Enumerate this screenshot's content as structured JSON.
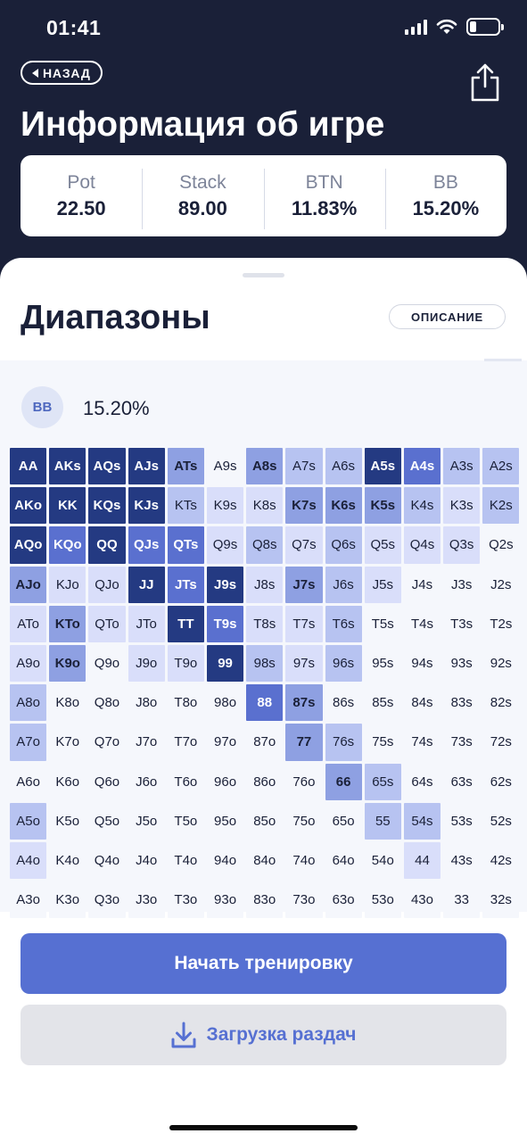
{
  "status_bar": {
    "time": "01:41",
    "battery_level": 0.22
  },
  "header": {
    "back_label": "НАЗАД",
    "title": "Информация об игре",
    "stats": [
      {
        "label": "Pot",
        "value": "22.50"
      },
      {
        "label": "Stack",
        "value": "89.00"
      },
      {
        "label": "BTN",
        "value": "11.83%"
      },
      {
        "label": "BB",
        "value": "15.20%"
      }
    ]
  },
  "ranges": {
    "title": "Диапазоны",
    "description_button": "ОПИСАНИЕ",
    "position": "BB",
    "percent": "15.20%",
    "colors": {
      "level_0": "#f5f7fc",
      "level_1": "#d9defa",
      "level_2": "#b7c3f1",
      "level_3": "#8ea0e2",
      "level_4": "#5a70cf",
      "level_5": "#243a82"
    },
    "grid": [
      [
        [
          "AA",
          5
        ],
        [
          "AKs",
          5
        ],
        [
          "AQs",
          5
        ],
        [
          "AJs",
          5
        ],
        [
          "ATs",
          3
        ],
        [
          "A9s",
          0
        ],
        [
          "A8s",
          3
        ],
        [
          "A7s",
          2
        ],
        [
          "A6s",
          2
        ],
        [
          "A5s",
          5
        ],
        [
          "A4s",
          4
        ],
        [
          "A3s",
          2
        ],
        [
          "A2s",
          2
        ]
      ],
      [
        [
          "AKo",
          5
        ],
        [
          "KK",
          5
        ],
        [
          "KQs",
          5
        ],
        [
          "KJs",
          5
        ],
        [
          "KTs",
          2
        ],
        [
          "K9s",
          1
        ],
        [
          "K8s",
          1
        ],
        [
          "K7s",
          3
        ],
        [
          "K6s",
          3
        ],
        [
          "K5s",
          3
        ],
        [
          "K4s",
          2
        ],
        [
          "K3s",
          1
        ],
        [
          "K2s",
          2
        ]
      ],
      [
        [
          "AQo",
          5
        ],
        [
          "KQo",
          4
        ],
        [
          "QQ",
          5
        ],
        [
          "QJs",
          4
        ],
        [
          "QTs",
          4
        ],
        [
          "Q9s",
          1
        ],
        [
          "Q8s",
          2
        ],
        [
          "Q7s",
          1
        ],
        [
          "Q6s",
          2
        ],
        [
          "Q5s",
          1
        ],
        [
          "Q4s",
          1
        ],
        [
          "Q3s",
          1
        ],
        [
          "Q2s",
          0
        ]
      ],
      [
        [
          "AJo",
          3
        ],
        [
          "KJo",
          1
        ],
        [
          "QJo",
          1
        ],
        [
          "JJ",
          5
        ],
        [
          "JTs",
          4
        ],
        [
          "J9s",
          5
        ],
        [
          "J8s",
          1
        ],
        [
          "J7s",
          3
        ],
        [
          "J6s",
          2
        ],
        [
          "J5s",
          1
        ],
        [
          "J4s",
          0
        ],
        [
          "J3s",
          0
        ],
        [
          "J2s",
          0
        ]
      ],
      [
        [
          "ATo",
          1
        ],
        [
          "KTo",
          3
        ],
        [
          "QTo",
          1
        ],
        [
          "JTo",
          1
        ],
        [
          "TT",
          5
        ],
        [
          "T9s",
          4
        ],
        [
          "T8s",
          1
        ],
        [
          "T7s",
          1
        ],
        [
          "T6s",
          2
        ],
        [
          "T5s",
          0
        ],
        [
          "T4s",
          0
        ],
        [
          "T3s",
          0
        ],
        [
          "T2s",
          0
        ]
      ],
      [
        [
          "A9o",
          1
        ],
        [
          "K9o",
          3
        ],
        [
          "Q9o",
          0
        ],
        [
          "J9o",
          1
        ],
        [
          "T9o",
          1
        ],
        [
          "99",
          5
        ],
        [
          "98s",
          2
        ],
        [
          "97s",
          1
        ],
        [
          "96s",
          2
        ],
        [
          "95s",
          0
        ],
        [
          "94s",
          0
        ],
        [
          "93s",
          0
        ],
        [
          "92s",
          0
        ]
      ],
      [
        [
          "A8o",
          2
        ],
        [
          "K8o",
          0
        ],
        [
          "Q8o",
          0
        ],
        [
          "J8o",
          0
        ],
        [
          "T8o",
          0
        ],
        [
          "98o",
          0
        ],
        [
          "88",
          4
        ],
        [
          "87s",
          3
        ],
        [
          "86s",
          0
        ],
        [
          "85s",
          0
        ],
        [
          "84s",
          0
        ],
        [
          "83s",
          0
        ],
        [
          "82s",
          0
        ]
      ],
      [
        [
          "A7o",
          2
        ],
        [
          "K7o",
          0
        ],
        [
          "Q7o",
          0
        ],
        [
          "J7o",
          0
        ],
        [
          "T7o",
          0
        ],
        [
          "97o",
          0
        ],
        [
          "87o",
          0
        ],
        [
          "77",
          3
        ],
        [
          "76s",
          2
        ],
        [
          "75s",
          0
        ],
        [
          "74s",
          0
        ],
        [
          "73s",
          0
        ],
        [
          "72s",
          0
        ]
      ],
      [
        [
          "A6o",
          0
        ],
        [
          "K6o",
          0
        ],
        [
          "Q6o",
          0
        ],
        [
          "J6o",
          0
        ],
        [
          "T6o",
          0
        ],
        [
          "96o",
          0
        ],
        [
          "86o",
          0
        ],
        [
          "76o",
          0
        ],
        [
          "66",
          3
        ],
        [
          "65s",
          2
        ],
        [
          "64s",
          0
        ],
        [
          "63s",
          0
        ],
        [
          "62s",
          0
        ]
      ],
      [
        [
          "A5o",
          2
        ],
        [
          "K5o",
          0
        ],
        [
          "Q5o",
          0
        ],
        [
          "J5o",
          0
        ],
        [
          "T5o",
          0
        ],
        [
          "95o",
          0
        ],
        [
          "85o",
          0
        ],
        [
          "75o",
          0
        ],
        [
          "65o",
          0
        ],
        [
          "55",
          2
        ],
        [
          "54s",
          2
        ],
        [
          "53s",
          0
        ],
        [
          "52s",
          0
        ]
      ],
      [
        [
          "A4o",
          1
        ],
        [
          "K4o",
          0
        ],
        [
          "Q4o",
          0
        ],
        [
          "J4o",
          0
        ],
        [
          "T4o",
          0
        ],
        [
          "94o",
          0
        ],
        [
          "84o",
          0
        ],
        [
          "74o",
          0
        ],
        [
          "64o",
          0
        ],
        [
          "54o",
          0
        ],
        [
          "44",
          1
        ],
        [
          "43s",
          0
        ],
        [
          "42s",
          0
        ]
      ],
      [
        [
          "A3o",
          0
        ],
        [
          "K3o",
          0
        ],
        [
          "Q3o",
          0
        ],
        [
          "J3o",
          0
        ],
        [
          "T3o",
          0
        ],
        [
          "93o",
          0
        ],
        [
          "83o",
          0
        ],
        [
          "73o",
          0
        ],
        [
          "63o",
          0
        ],
        [
          "53o",
          0
        ],
        [
          "43o",
          0
        ],
        [
          "33",
          0
        ],
        [
          "32s",
          0
        ]
      ]
    ]
  },
  "actions": {
    "start_label": "Начать тренировку",
    "download_label": "Загрузка раздач"
  }
}
